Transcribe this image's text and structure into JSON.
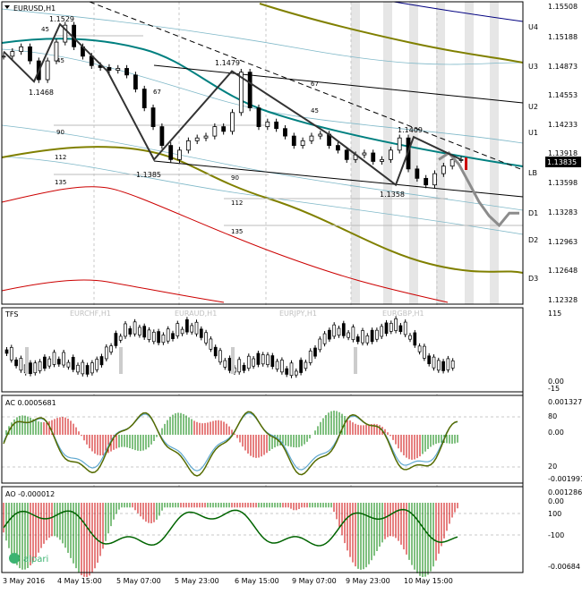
{
  "symbol_title": "EURUSD,H1",
  "price_axis": [
    "1.15508",
    "1.15188",
    "1.14873",
    "1.14553",
    "1.14233",
    "1.13918",
    "1.13598",
    "1.13283",
    "1.12963",
    "1.12648",
    "1.12328"
  ],
  "current_price": "1.13835",
  "level_labels": [
    "U4",
    "U3",
    "U2",
    "U1",
    "LB",
    "D1",
    "D2",
    "D3"
  ],
  "points": [
    "1.1529",
    "1.1468",
    "1.1479",
    "1.1385",
    "1.1409",
    "1.1358"
  ],
  "angle_labels": [
    "45",
    "45",
    "67",
    "90",
    "112",
    "135",
    "67",
    "45",
    "90",
    "112",
    "135"
  ],
  "time_axis": [
    "3 May 2016",
    "4 May 15:00",
    "5 May 07:00",
    "5 May 23:00",
    "6 May 15:00",
    "9 May 07:00",
    "9 May 23:00",
    "10 May 15:00"
  ],
  "tfs": {
    "title": "TFS",
    "pairs": [
      "EURCHF,H1",
      "EURAUD,H1",
      "EURJPY,H1",
      "EURGBP,H1"
    ],
    "axis": [
      "115",
      "0.00",
      "-15"
    ]
  },
  "ac": {
    "title": "AC 0.0005681",
    "axis": [
      "0.001327",
      "80",
      "0.00",
      "20",
      "-0.001991"
    ]
  },
  "ao": {
    "title": "AO -0.000012",
    "axis": [
      "0.001286",
      "0.00",
      "100",
      "-100",
      "-0.00684"
    ]
  },
  "brand": "alpari",
  "colors": {
    "channel": "#008080",
    "olive": "#808000",
    "red": "#cc0000",
    "navy": "#000080",
    "bull_bar": "#008000",
    "bear_bar": "#cc0000"
  },
  "chart_data": {
    "type": "line",
    "title": "EURUSD,H1",
    "x_labels": [
      "3 May 2016",
      "4 May 15:00",
      "5 May 07:00",
      "5 May 23:00",
      "6 May 15:00",
      "9 May 07:00",
      "9 May 23:00",
      "10 May 15:00"
    ],
    "ylim": [
      1.1233,
      1.1551
    ],
    "series": [
      {
        "role": "price",
        "values": [
          1.1495,
          1.15,
          1.1505,
          1.149,
          1.147,
          1.149,
          1.151,
          1.1528,
          1.1505,
          1.1495,
          1.1485,
          1.1483,
          1.148,
          1.1482,
          1.1475,
          1.146,
          1.144,
          1.142,
          1.14,
          1.1385,
          1.1395,
          1.1405,
          1.1408,
          1.141,
          1.142,
          1.1415,
          1.1435,
          1.1478,
          1.144,
          1.142,
          1.1425,
          1.1418,
          1.141,
          1.14,
          1.1405,
          1.141,
          1.1412,
          1.14,
          1.1395,
          1.1385,
          1.139,
          1.1392,
          1.1383,
          1.1385,
          1.1395,
          1.1408,
          1.1375,
          1.1365,
          1.1358,
          1.137,
          1.1378,
          1.1385,
          1.1385
        ]
      },
      {
        "role": "projection",
        "values": [
          1.1385,
          1.1392,
          1.138,
          1.136,
          1.134,
          1.1325,
          1.1315,
          1.1328,
          1.1328
        ]
      },
      {
        "role": "wave",
        "values": [
          1.15,
          1.1468,
          1.1529,
          1.1479,
          1.1385,
          1.1479,
          1.141,
          1.1358,
          1.1409,
          1.1385
        ]
      }
    ]
  }
}
